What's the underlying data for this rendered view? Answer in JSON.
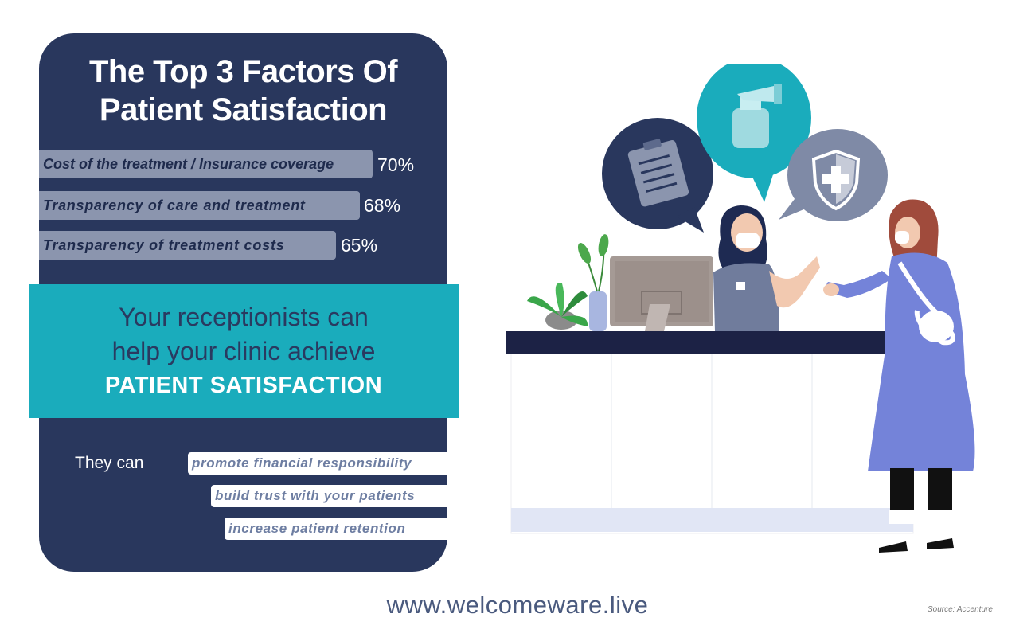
{
  "title": {
    "line1": "The Top 3 Factors Of",
    "line2": "Patient Satisfaction"
  },
  "factors": [
    {
      "label": "Cost of the treatment / Insurance coverage",
      "value": 70,
      "display": "70%"
    },
    {
      "label": "Transparency of care and treatment",
      "value": 68,
      "display": "68%"
    },
    {
      "label": "Transparency of treatment costs",
      "value": 65,
      "display": "65%"
    }
  ],
  "callout": {
    "line1": "Your receptionists can",
    "line2": "help your clinic achieve",
    "emphasis": "PATIENT SATISFACTION"
  },
  "benefits": {
    "intro": "They can",
    "items": [
      "promote financial responsibility",
      "build trust with your patients",
      "increase patient retention"
    ]
  },
  "footer": {
    "url": "www.welcomeware.live",
    "source": "Source: Accenture"
  },
  "colors": {
    "navy": "#29375d",
    "teal": "#1aacbc",
    "bar": "#8b95ae",
    "speech_dark": "#29375d",
    "speech_teal": "#1aacbc",
    "speech_grey": "#7f8aa6"
  },
  "icons": [
    "clipboard-icon",
    "hand-sanitizer-icon",
    "shield-cross-icon"
  ]
}
